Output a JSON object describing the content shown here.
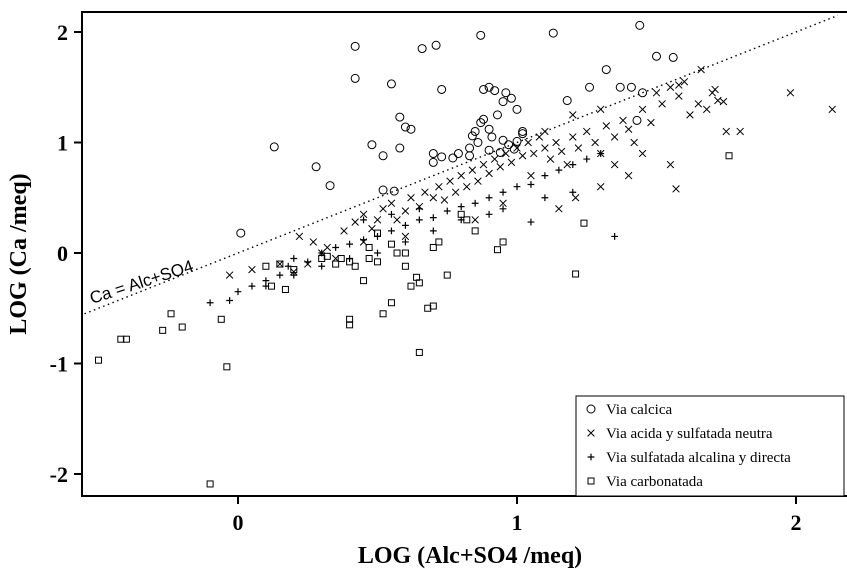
{
  "chart_data": {
    "type": "scatter",
    "xlabel": "LOG (Alc+SO4 /meq)",
    "ylabel": "LOG (Ca /meq)",
    "xlim": [
      -0.55,
      2.15
    ],
    "ylim": [
      -2.15,
      2.15
    ],
    "x_ticks": [
      "0",
      "1",
      "2"
    ],
    "y_ticks": [
      "2",
      "1",
      "0",
      "-1",
      "-2"
    ],
    "grid": false,
    "legend_position": "bottom-right",
    "reference_line": {
      "label": "Ca = Alc+SO4",
      "slope": 1,
      "intercept": 0,
      "style": "dotted"
    },
    "series": [
      {
        "name": "Via calcica",
        "marker": "circle",
        "points": [
          [
            0.01,
            0.18
          ],
          [
            0.13,
            0.96
          ],
          [
            0.28,
            0.78
          ],
          [
            0.33,
            0.61
          ],
          [
            0.42,
            1.87
          ],
          [
            0.42,
            1.58
          ],
          [
            0.48,
            0.98
          ],
          [
            0.52,
            0.88
          ],
          [
            0.52,
            0.57
          ],
          [
            0.55,
            1.53
          ],
          [
            0.56,
            0.56
          ],
          [
            0.58,
            1.23
          ],
          [
            0.6,
            1.14
          ],
          [
            0.62,
            1.12
          ],
          [
            0.58,
            0.95
          ],
          [
            0.66,
            1.85
          ],
          [
            0.71,
            1.88
          ],
          [
            0.73,
            1.48
          ],
          [
            0.7,
            0.9
          ],
          [
            0.73,
            0.87
          ],
          [
            0.77,
            0.86
          ],
          [
            0.79,
            0.9
          ],
          [
            0.7,
            0.82
          ],
          [
            0.83,
            0.95
          ],
          [
            0.84,
            1.06
          ],
          [
            0.85,
            1.1
          ],
          [
            0.87,
            1.97
          ],
          [
            0.88,
            1.48
          ],
          [
            0.9,
            1.5
          ],
          [
            0.92,
            1.47
          ],
          [
            0.88,
            1.21
          ],
          [
            0.9,
            1.12
          ],
          [
            0.9,
            0.93
          ],
          [
            0.93,
            1.25
          ],
          [
            0.95,
            1.37
          ],
          [
            0.96,
            1.45
          ],
          [
            0.98,
            1.4
          ],
          [
            1.0,
            1.3
          ],
          [
            0.95,
            1.02
          ],
          [
            0.97,
            0.98
          ],
          [
            1.0,
            1.01
          ],
          [
            1.02,
            1.1
          ],
          [
            1.02,
            1.08
          ],
          [
            0.94,
            0.91
          ],
          [
            1.13,
            1.99
          ],
          [
            1.18,
            1.38
          ],
          [
            1.26,
            1.5
          ],
          [
            1.32,
            1.66
          ],
          [
            1.37,
            1.5
          ],
          [
            1.41,
            1.5
          ],
          [
            1.45,
            1.45
          ],
          [
            1.43,
            1.2
          ],
          [
            1.5,
            1.78
          ],
          [
            1.56,
            1.77
          ],
          [
            1.44,
            2.06
          ],
          [
            0.86,
            1.0
          ],
          [
            0.83,
            0.88
          ],
          [
            0.91,
            1.05
          ],
          [
            0.99,
            0.94
          ],
          [
            0.87,
            1.18
          ]
        ]
      },
      {
        "name": "Via acida y sulfatada neutra",
        "marker": "x",
        "points": [
          [
            -0.03,
            -0.2
          ],
          [
            0.05,
            -0.15
          ],
          [
            0.15,
            -0.1
          ],
          [
            0.2,
            -0.17
          ],
          [
            0.22,
            0.15
          ],
          [
            0.27,
            0.1
          ],
          [
            0.3,
            0.0
          ],
          [
            0.32,
            0.05
          ],
          [
            0.38,
            0.2
          ],
          [
            0.42,
            0.28
          ],
          [
            0.45,
            0.35
          ],
          [
            0.48,
            0.22
          ],
          [
            0.5,
            0.3
          ],
          [
            0.52,
            0.4
          ],
          [
            0.55,
            0.45
          ],
          [
            0.57,
            0.3
          ],
          [
            0.6,
            0.38
          ],
          [
            0.62,
            0.5
          ],
          [
            0.65,
            0.42
          ],
          [
            0.67,
            0.55
          ],
          [
            0.7,
            0.5
          ],
          [
            0.72,
            0.6
          ],
          [
            0.74,
            0.48
          ],
          [
            0.76,
            0.65
          ],
          [
            0.78,
            0.55
          ],
          [
            0.8,
            0.7
          ],
          [
            0.82,
            0.6
          ],
          [
            0.84,
            0.75
          ],
          [
            0.86,
            0.65
          ],
          [
            0.88,
            0.8
          ],
          [
            0.9,
            0.72
          ],
          [
            0.92,
            0.85
          ],
          [
            0.94,
            0.78
          ],
          [
            0.96,
            0.9
          ],
          [
            0.98,
            0.82
          ],
          [
            1.0,
            0.95
          ],
          [
            1.02,
            0.88
          ],
          [
            1.04,
            1.0
          ],
          [
            1.06,
            0.9
          ],
          [
            1.08,
            1.05
          ],
          [
            1.1,
            0.95
          ],
          [
            1.12,
            0.85
          ],
          [
            1.14,
            1.0
          ],
          [
            1.16,
            0.92
          ],
          [
            1.18,
            0.8
          ],
          [
            1.2,
            1.05
          ],
          [
            1.22,
            0.95
          ],
          [
            1.25,
            1.1
          ],
          [
            1.28,
            1.0
          ],
          [
            1.3,
            0.9
          ],
          [
            1.32,
            1.15
          ],
          [
            1.35,
            1.05
          ],
          [
            1.38,
            1.2
          ],
          [
            1.4,
            1.12
          ],
          [
            1.42,
            1.0
          ],
          [
            1.45,
            1.3
          ],
          [
            1.48,
            1.18
          ],
          [
            1.5,
            1.45
          ],
          [
            1.52,
            1.35
          ],
          [
            1.55,
            1.5
          ],
          [
            1.58,
            1.42
          ],
          [
            1.6,
            1.55
          ],
          [
            1.62,
            1.25
          ],
          [
            1.65,
            1.35
          ],
          [
            1.68,
            1.3
          ],
          [
            1.7,
            1.45
          ],
          [
            1.72,
            1.38
          ],
          [
            1.75,
            1.1
          ],
          [
            1.8,
            1.1
          ],
          [
            1.98,
            1.45
          ],
          [
            2.13,
            1.3
          ],
          [
            1.57,
            0.58
          ],
          [
            1.58,
            1.52
          ],
          [
            1.66,
            1.66
          ],
          [
            1.71,
            1.48
          ],
          [
            1.74,
            1.37
          ],
          [
            1.21,
            0.5
          ],
          [
            1.3,
            0.6
          ],
          [
            1.15,
            0.4
          ],
          [
            0.95,
            0.45
          ],
          [
            1.05,
            0.7
          ],
          [
            0.85,
            0.3
          ],
          [
            0.6,
            0.15
          ],
          [
            0.45,
            0.1
          ],
          [
            0.35,
            -0.05
          ],
          [
            0.25,
            -0.1
          ],
          [
            1.35,
            0.8
          ],
          [
            1.4,
            0.7
          ],
          [
            1.45,
            0.9
          ],
          [
            1.55,
            0.8
          ],
          [
            1.1,
            1.1
          ],
          [
            1.2,
            1.25
          ],
          [
            1.3,
            1.3
          ]
        ]
      },
      {
        "name": "Via sulfatada alcalina y directa",
        "marker": "plus",
        "points": [
          [
            -0.1,
            -0.45
          ],
          [
            -0.03,
            -0.43
          ],
          [
            0.0,
            -0.35
          ],
          [
            0.05,
            -0.3
          ],
          [
            0.1,
            -0.25
          ],
          [
            0.15,
            -0.2
          ],
          [
            0.18,
            -0.12
          ],
          [
            0.2,
            -0.05
          ],
          [
            0.25,
            -0.08
          ],
          [
            0.3,
            0.0
          ],
          [
            0.35,
            0.05
          ],
          [
            0.4,
            0.08
          ],
          [
            0.45,
            0.12
          ],
          [
            0.5,
            0.15
          ],
          [
            0.55,
            0.2
          ],
          [
            0.6,
            0.25
          ],
          [
            0.65,
            0.3
          ],
          [
            0.7,
            0.32
          ],
          [
            0.75,
            0.38
          ],
          [
            0.8,
            0.42
          ],
          [
            0.85,
            0.45
          ],
          [
            0.9,
            0.5
          ],
          [
            0.95,
            0.55
          ],
          [
            1.0,
            0.6
          ],
          [
            1.05,
            0.62
          ],
          [
            1.1,
            0.7
          ],
          [
            1.15,
            0.75
          ],
          [
            1.2,
            0.8
          ],
          [
            1.25,
            0.85
          ],
          [
            1.3,
            0.9
          ],
          [
            1.35,
            0.15
          ],
          [
            1.05,
            0.28
          ],
          [
            0.9,
            0.35
          ],
          [
            0.6,
            0.1
          ],
          [
            0.5,
            0.0
          ],
          [
            0.4,
            -0.05
          ],
          [
            0.3,
            -0.12
          ],
          [
            0.2,
            -0.2
          ],
          [
            0.1,
            -0.3
          ],
          [
            0.7,
            0.2
          ],
          [
            0.8,
            0.3
          ],
          [
            0.95,
            0.4
          ],
          [
            1.1,
            0.5
          ],
          [
            1.2,
            0.55
          ],
          [
            0.65,
            0.4
          ],
          [
            0.55,
            0.35
          ],
          [
            0.45,
            0.3
          ]
        ]
      },
      {
        "name": "Via carbonatada",
        "marker": "square",
        "points": [
          [
            -0.5,
            -0.97
          ],
          [
            -0.42,
            -0.78
          ],
          [
            -0.4,
            -0.78
          ],
          [
            -0.27,
            -0.7
          ],
          [
            -0.24,
            -0.55
          ],
          [
            -0.2,
            -0.67
          ],
          [
            -0.06,
            -0.6
          ],
          [
            -0.04,
            -1.03
          ],
          [
            -0.1,
            -2.09
          ],
          [
            0.1,
            -0.12
          ],
          [
            0.12,
            -0.3
          ],
          [
            0.15,
            -0.1
          ],
          [
            0.17,
            -0.33
          ],
          [
            0.2,
            -0.15
          ],
          [
            0.3,
            -0.05
          ],
          [
            0.32,
            -0.03
          ],
          [
            0.35,
            -0.1
          ],
          [
            0.37,
            -0.05
          ],
          [
            0.4,
            -0.08
          ],
          [
            0.42,
            -0.12
          ],
          [
            0.45,
            -0.25
          ],
          [
            0.4,
            -0.6
          ],
          [
            0.4,
            -0.65
          ],
          [
            0.47,
            -0.05
          ],
          [
            0.5,
            -0.08
          ],
          [
            0.52,
            -0.55
          ],
          [
            0.55,
            0.08
          ],
          [
            0.57,
            0.0
          ],
          [
            0.6,
            -0.12
          ],
          [
            0.62,
            -0.3
          ],
          [
            0.64,
            -0.22
          ],
          [
            0.65,
            -0.27
          ],
          [
            0.68,
            -0.5
          ],
          [
            0.7,
            -0.48
          ],
          [
            0.72,
            0.1
          ],
          [
            0.75,
            -0.2
          ],
          [
            0.65,
            -0.9
          ],
          [
            0.47,
            0.05
          ],
          [
            0.5,
            0.18
          ],
          [
            0.8,
            0.35
          ],
          [
            0.82,
            0.3
          ],
          [
            0.85,
            0.2
          ],
          [
            0.93,
            0.03
          ],
          [
            0.95,
            0.1
          ],
          [
            1.21,
            -0.19
          ],
          [
            1.24,
            0.27
          ],
          [
            1.76,
            0.88
          ],
          [
            0.7,
            0.05
          ],
          [
            0.6,
            0.0
          ],
          [
            0.55,
            -0.45
          ]
        ]
      }
    ]
  }
}
